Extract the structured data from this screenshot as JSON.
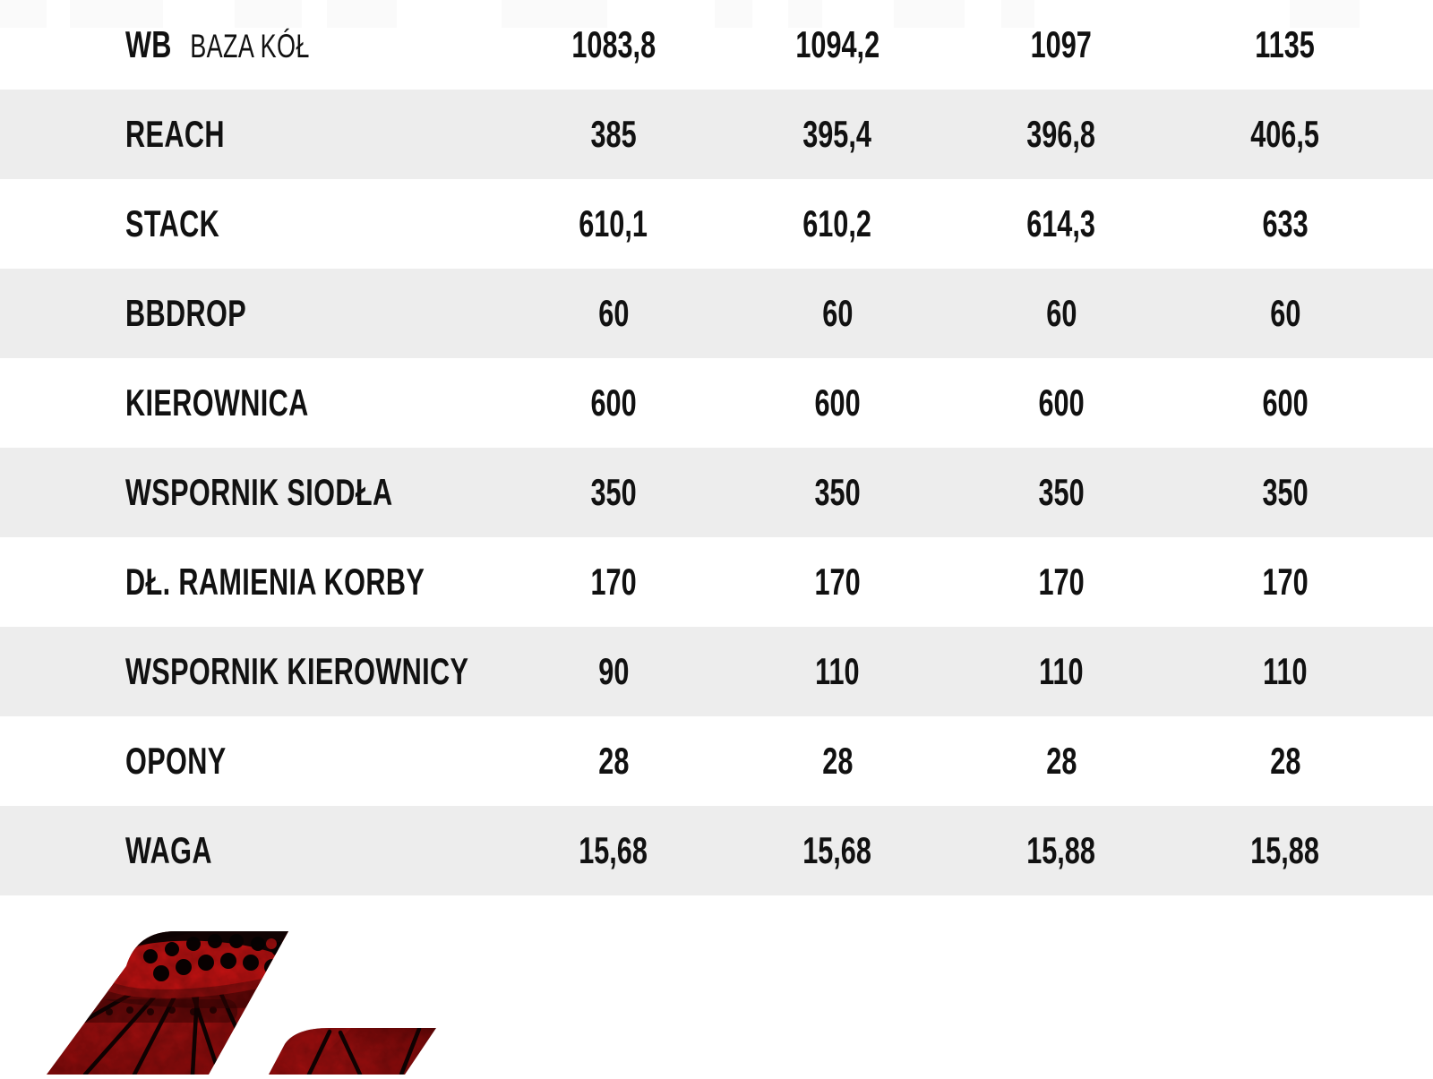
{
  "table": {
    "rows": [
      {
        "label": "WB",
        "sublabel": "BAZA KÓŁ",
        "values": [
          "1083,8",
          "1094,2",
          "1097",
          "1135"
        ]
      },
      {
        "label": "REACH",
        "sublabel": "",
        "values": [
          "385",
          "395,4",
          "396,8",
          "406,5"
        ]
      },
      {
        "label": "STACK",
        "sublabel": "",
        "values": [
          "610,1",
          "610,2",
          "614,3",
          "633"
        ]
      },
      {
        "label": "BBDROP",
        "sublabel": "",
        "values": [
          "60",
          "60",
          "60",
          "60"
        ]
      },
      {
        "label": "KIEROWNICA",
        "sublabel": "",
        "values": [
          "600",
          "600",
          "600",
          "600"
        ]
      },
      {
        "label": "WSPORNIK SIODŁA",
        "sublabel": "",
        "values": [
          "350",
          "350",
          "350",
          "350"
        ]
      },
      {
        "label": "DŁ. RAMIENIA KORBY",
        "sublabel": "",
        "values": [
          "170",
          "170",
          "170",
          "170"
        ]
      },
      {
        "label": "WSPORNIK KIEROWNICY",
        "sublabel": "",
        "values": [
          "90",
          "110",
          "110",
          "110"
        ]
      },
      {
        "label": "OPONY",
        "sublabel": "",
        "values": [
          "28",
          "28",
          "28",
          "28"
        ]
      },
      {
        "label": "WAGA",
        "sublabel": "",
        "values": [
          "15,68",
          "15,68",
          "15,88",
          "15,88"
        ]
      }
    ]
  },
  "colors": {
    "row_alt": "#ededed",
    "text": "#111111",
    "logo_red_bright": "#c21212",
    "logo_red_dark": "#6f0808",
    "logo_black": "#0a0202"
  },
  "logo": {
    "icon": "bike-wheel-logo-icon"
  }
}
